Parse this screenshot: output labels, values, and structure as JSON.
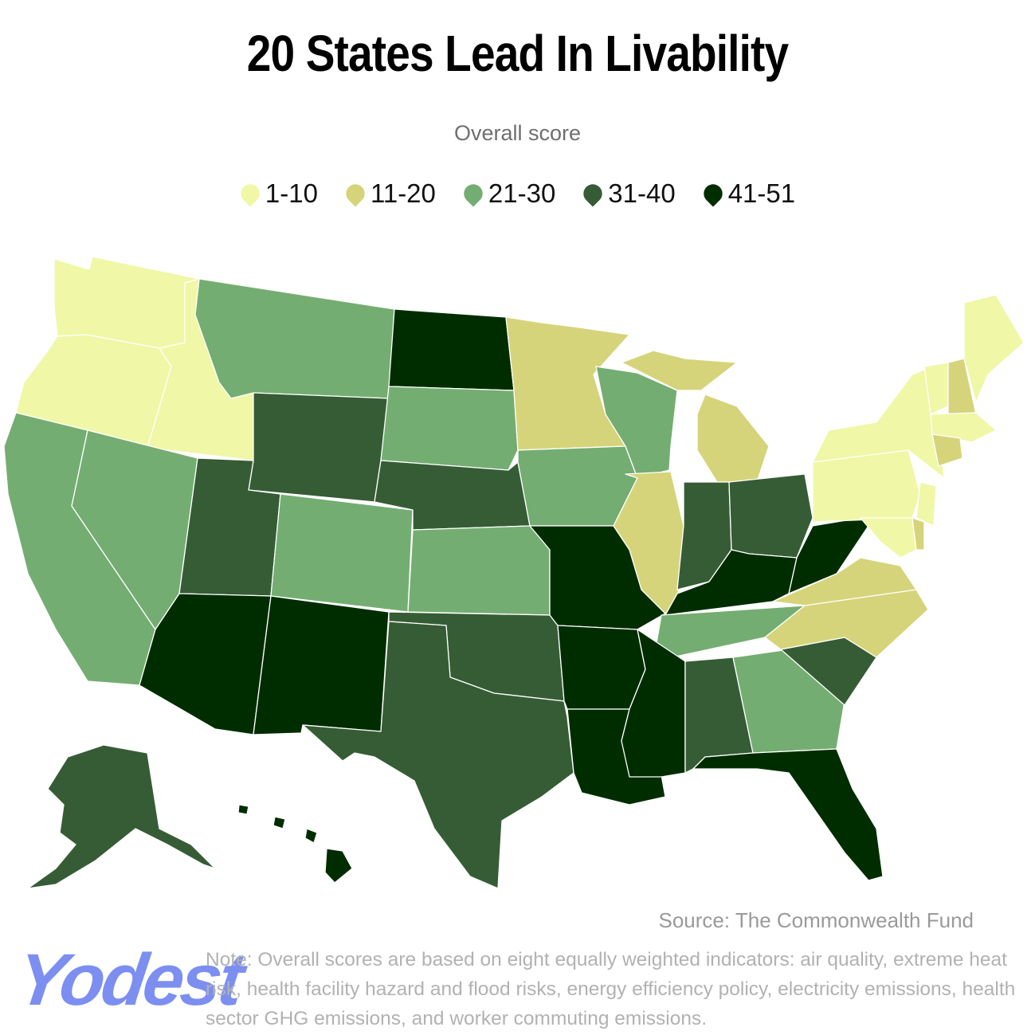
{
  "title": "20 States Lead In Livability",
  "subtitle": "Overall score",
  "legend": [
    {
      "label": "1-10",
      "color": "#f0f7a6"
    },
    {
      "label": "11-20",
      "color": "#d6d47a"
    },
    {
      "label": "21-30",
      "color": "#74ad71"
    },
    {
      "label": "31-40",
      "color": "#365c35"
    },
    {
      "label": "41-51",
      "color": "#002d00"
    }
  ],
  "states": {
    "WA": "1-10",
    "OR": "1-10",
    "ID": "1-10",
    "NY": "1-10",
    "PA": "1-10",
    "VT": "1-10",
    "ME": "1-10",
    "MA": "1-10",
    "NJ": "1-10",
    "MD": "1-10",
    "CA": "21-30",
    "NV": "21-30",
    "MT": "21-30",
    "CO": "21-30",
    "SD": "21-30",
    "KS": "21-30",
    "IA": "21-30",
    "WI": "21-30",
    "TN": "21-30",
    "GA": "21-30",
    "MN": "11-20",
    "MI": "11-20",
    "IL": "11-20",
    "VA": "11-20",
    "NC": "11-20",
    "NH": "11-20",
    "CT": "11-20",
    "DE": "11-20",
    "UT": "31-40",
    "WY": "31-40",
    "NE": "31-40",
    "TX": "31-40",
    "OK": "31-40",
    "IN": "31-40",
    "OH": "31-40",
    "AL": "31-40",
    "SC": "31-40",
    "AK": "31-40",
    "ND": "41-51",
    "AZ": "41-51",
    "NM": "41-51",
    "MO": "41-51",
    "AR": "41-51",
    "LA": "41-51",
    "MS": "41-51",
    "KY": "41-51",
    "WV": "41-51",
    "FL": "41-51",
    "HI": "41-51"
  },
  "source": "Source: The Commonwealth Fund",
  "logo": "Yodest",
  "note": "Note: Overall scores are based on eight equally weighted indicators: air quality, extreme heat risk, health facility hazard and flood risks, energy efficiency policy, electricity emissions, health sector GHG emissions, and worker commuting emissions."
}
